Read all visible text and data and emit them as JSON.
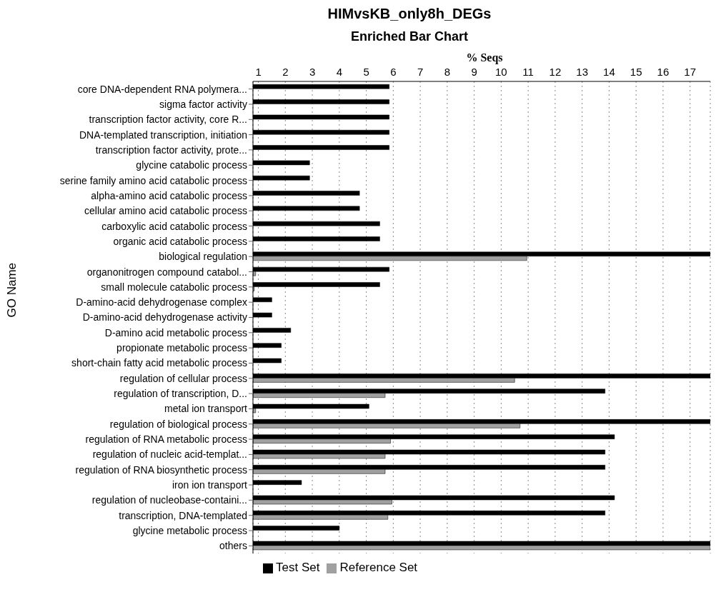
{
  "chart_data": {
    "type": "bar",
    "orientation": "horizontal",
    "title": "HIMvsKB_only8h_DEGs",
    "subtitle": "Enriched Bar Chart",
    "xlabel": "% Seqs",
    "ylabel": "GO Name",
    "categories": [
      "core DNA-dependent RNA polymera...",
      "sigma factor activity",
      "transcription factor activity, core R...",
      "DNA-templated transcription, initiation",
      "transcription factor activity, prote...",
      "glycine catabolic process",
      "serine family amino acid catabolic process",
      "alpha-amino acid catabolic process",
      "cellular amino acid catabolic process",
      "carboxylic acid catabolic process",
      "organic acid catabolic process",
      "biological regulation",
      "organonitrogen compound catabol...",
      "small molecule catabolic process",
      "D-amino-acid dehydrogenase complex",
      "D-amino-acid dehydrogenase activity",
      "D-amino acid metabolic process",
      "propionate metabolic process",
      "short-chain fatty acid metabolic process",
      "regulation of cellular process",
      "regulation of transcription, D...",
      "metal ion transport",
      "regulation of biological process",
      "regulation of RNA metabolic process",
      "regulation of nucleic acid-templat...",
      "regulation of RNA biosynthetic process",
      "iron ion transport",
      "regulation of nucleobase-containi...",
      "transcription, DNA-templated",
      "glycine metabolic process",
      "others"
    ],
    "series": [
      {
        "name": "Test Set",
        "color": "#000000",
        "values": [
          5.85,
          5.85,
          5.85,
          5.85,
          5.85,
          2.9,
          2.9,
          4.75,
          4.75,
          5.5,
          5.5,
          17.75,
          5.85,
          5.5,
          1.5,
          1.5,
          2.2,
          1.85,
          1.85,
          17.75,
          13.85,
          5.1,
          17.75,
          14.2,
          13.85,
          13.85,
          2.6,
          14.2,
          13.85,
          4.0,
          17.75
        ]
      },
      {
        "name": "Reference Set",
        "color": "#a0a0a0",
        "values": [
          null,
          null,
          null,
          null,
          null,
          null,
          null,
          null,
          null,
          null,
          null,
          10.95,
          0.9,
          0.85,
          null,
          null,
          null,
          null,
          null,
          10.5,
          5.7,
          0.9,
          10.7,
          5.9,
          5.7,
          5.7,
          null,
          5.95,
          5.8,
          null,
          17.75
        ]
      }
    ],
    "xlim": [
      0.8,
      17.75
    ],
    "xticks": [
      1,
      2,
      3,
      4,
      5,
      6,
      7,
      8,
      9,
      10,
      11,
      12,
      13,
      14,
      15,
      16,
      17
    ],
    "grid": "x",
    "legend": "bottom left"
  }
}
